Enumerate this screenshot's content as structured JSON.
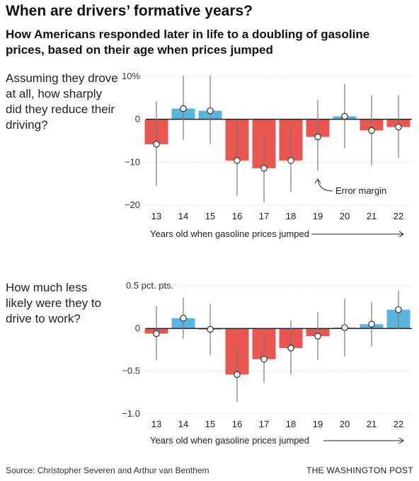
{
  "title": "When are drivers’ formative years?",
  "subtitle": "How Americans responded later in life to a doubling of gasoline prices, based on their age when prices jumped",
  "colors": {
    "negative": "#e8564f",
    "positive": "#5ab4e0",
    "error": "#777777",
    "zero": "#222222",
    "grid": "#d0d0d0"
  },
  "chart_data": [
    {
      "type": "bar",
      "question": "Assuming they drove at all, how sharply did they reduce their driving?",
      "categories": [
        "13",
        "14",
        "15",
        "16",
        "17",
        "18",
        "19",
        "20",
        "21",
        "22"
      ],
      "values": [
        -5.8,
        2.5,
        2.0,
        -9.6,
        -11.4,
        -9.6,
        -4.1,
        0.7,
        -2.6,
        -1.8
      ],
      "error_low": [
        -15.5,
        -4.8,
        -5.8,
        -17.8,
        -19.3,
        -17.0,
        -12.0,
        -6.8,
        -10.8,
        -9.0
      ],
      "error_high": [
        4.2,
        10.2,
        10.2,
        -0.5,
        -3.5,
        -1.8,
        4.6,
        8.3,
        5.6,
        5.6
      ],
      "ylim": [
        -20,
        10
      ],
      "yticks": [
        10,
        0,
        -10,
        -20
      ],
      "ytick_labels": [
        "10%",
        "0",
        "−10",
        "−20"
      ],
      "xlabel": "Years old when gasoline prices jumped",
      "annotation": "Error margin"
    },
    {
      "type": "bar",
      "question": "How much less likely were they to drive to work?",
      "categories": [
        "13",
        "14",
        "15",
        "16",
        "17",
        "18",
        "19",
        "20",
        "21",
        "22"
      ],
      "values": [
        -0.06,
        0.12,
        -0.01,
        -0.54,
        -0.36,
        -0.23,
        -0.09,
        0.01,
        0.05,
        0.22
      ],
      "error_low": [
        -0.37,
        -0.12,
        -0.31,
        -0.86,
        -0.64,
        -0.54,
        -0.37,
        -0.33,
        -0.21,
        -0.01
      ],
      "error_high": [
        0.26,
        0.36,
        0.29,
        -0.22,
        -0.07,
        0.09,
        0.19,
        0.35,
        0.31,
        0.44
      ],
      "ylim": [
        -1.0,
        0.5
      ],
      "yticks": [
        0.5,
        0,
        -0.5,
        -1.0
      ],
      "ytick_labels": [
        "0.5 pct. pts.",
        "0",
        "−0.5",
        "−1.0"
      ],
      "xlabel": "Years old when gasoline prices jumped"
    }
  ],
  "footer": {
    "source": "Source: Christopher Severen and Arthur van Benthem",
    "brand": "THE WASHINGTON POST"
  }
}
